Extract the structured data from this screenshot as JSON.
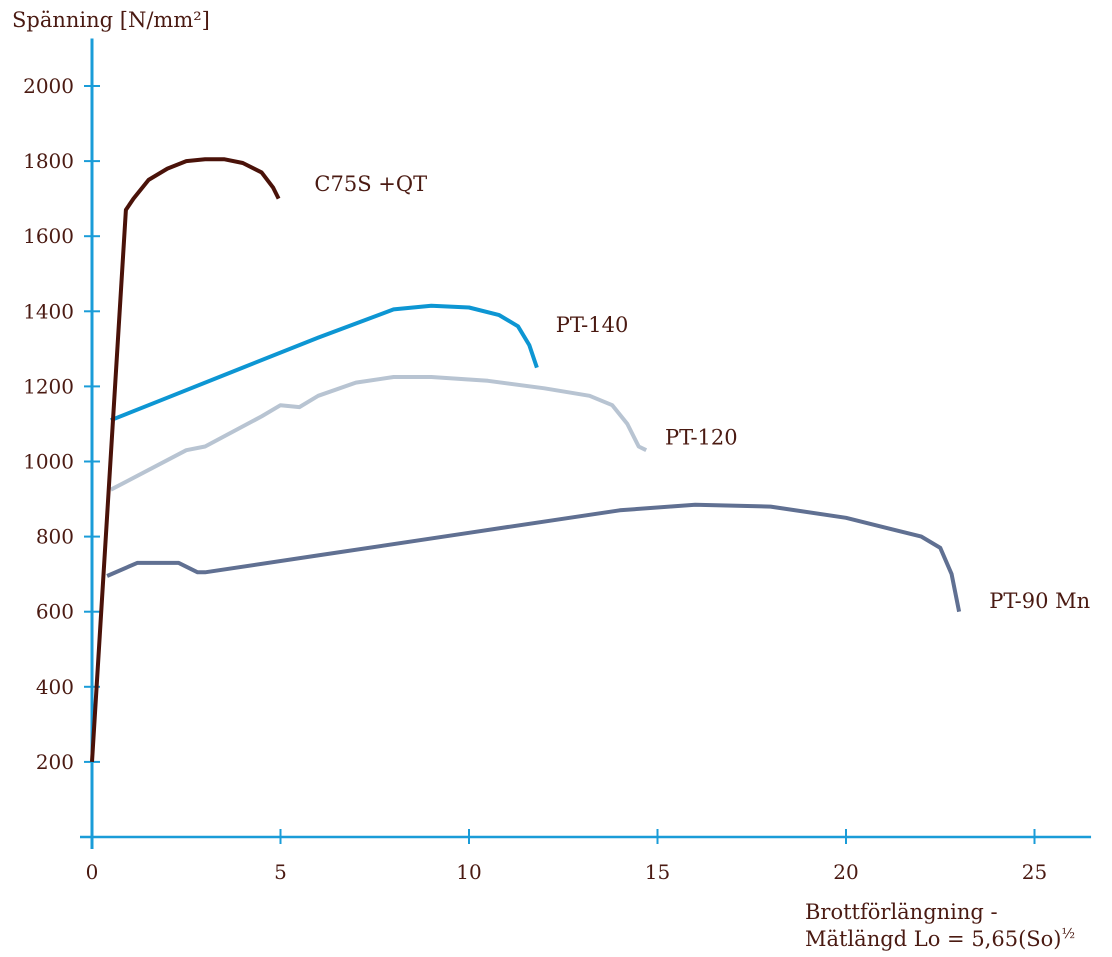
{
  "chart_data": {
    "type": "line",
    "ylabel": "Spänning [N/mm²]",
    "xlabel_line1": "Brottförlängning -",
    "xlabel_line2": "Mätlängd Lo = 5,65(So)",
    "xlabel_superscript": "½",
    "xlim": [
      0,
      26.5
    ],
    "ylim": [
      0,
      2100
    ],
    "x_ticks": [
      0,
      5,
      10,
      15,
      20,
      25
    ],
    "x_tick_labels": [
      "0",
      "5",
      "10",
      "15",
      "20",
      "25"
    ],
    "y_ticks": [
      200,
      400,
      600,
      800,
      1000,
      1200,
      1400,
      1600,
      1800,
      2000
    ],
    "y_tick_labels": [
      "200",
      "400",
      "600",
      "800",
      "1000",
      "1200",
      "1400",
      "1600",
      "1800",
      "2000"
    ],
    "grid": false,
    "axis_color": "#1a9cd8",
    "series": [
      {
        "name": "C75S +QT",
        "color": "#4a1209",
        "points": [
          [
            0.0,
            200
          ],
          [
            0.9,
            1670
          ],
          [
            1.1,
            1700
          ],
          [
            1.5,
            1750
          ],
          [
            2.0,
            1780
          ],
          [
            2.5,
            1800
          ],
          [
            3.0,
            1805
          ],
          [
            3.5,
            1805
          ],
          [
            4.0,
            1795
          ],
          [
            4.5,
            1770
          ],
          [
            4.8,
            1730
          ],
          [
            4.95,
            1700
          ]
        ]
      },
      {
        "name": "PT-140",
        "color": "#0d96d3",
        "points": [
          [
            0.5,
            1110
          ],
          [
            2,
            1170
          ],
          [
            4,
            1250
          ],
          [
            6,
            1330
          ],
          [
            8,
            1405
          ],
          [
            9,
            1415
          ],
          [
            10,
            1410
          ],
          [
            10.8,
            1390
          ],
          [
            11.3,
            1360
          ],
          [
            11.6,
            1310
          ],
          [
            11.8,
            1250
          ]
        ]
      },
      {
        "name": "PT-120",
        "color": "#b8c4d2",
        "points": [
          [
            0.5,
            925
          ],
          [
            2.5,
            1030
          ],
          [
            3.0,
            1040
          ],
          [
            4.5,
            1120
          ],
          [
            5.0,
            1150
          ],
          [
            5.5,
            1145
          ],
          [
            6.0,
            1175
          ],
          [
            7.0,
            1210
          ],
          [
            8.0,
            1225
          ],
          [
            9.0,
            1225
          ],
          [
            10.5,
            1215
          ],
          [
            12.0,
            1195
          ],
          [
            13.2,
            1175
          ],
          [
            13.8,
            1150
          ],
          [
            14.2,
            1100
          ],
          [
            14.5,
            1040
          ],
          [
            14.7,
            1030
          ]
        ]
      },
      {
        "name": "PT-90 Mn",
        "color": "#607092",
        "points": [
          [
            0.4,
            695
          ],
          [
            1.2,
            730
          ],
          [
            2.3,
            730
          ],
          [
            2.8,
            705
          ],
          [
            3.0,
            705
          ],
          [
            6,
            750
          ],
          [
            10,
            810
          ],
          [
            14,
            870
          ],
          [
            16,
            885
          ],
          [
            18,
            880
          ],
          [
            20,
            850
          ],
          [
            22,
            800
          ],
          [
            22.5,
            770
          ],
          [
            22.8,
            700
          ],
          [
            23.0,
            600
          ]
        ]
      }
    ],
    "annotations": [
      {
        "text": "C75S +QT",
        "x": 5.9,
        "y": 1720
      },
      {
        "text": "PT-140",
        "x": 12.3,
        "y": 1345
      },
      {
        "text": "PT-120",
        "x": 15.2,
        "y": 1045
      },
      {
        "text": "PT-90 Mn",
        "x": 23.8,
        "y": 610
      }
    ]
  }
}
